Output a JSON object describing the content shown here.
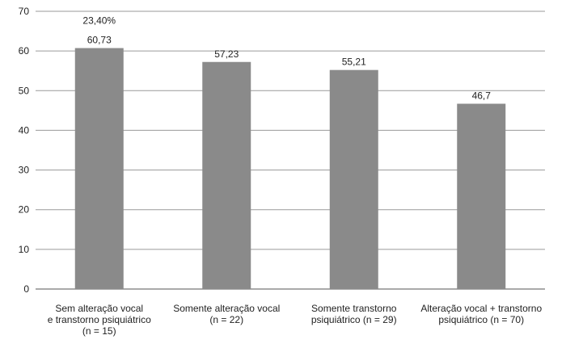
{
  "chart_data": {
    "type": "bar",
    "categories": [
      [
        "Sem alteração vocal",
        "e transtorno psiquiátrico",
        "(n = 15)"
      ],
      [
        "Somente alteração vocal",
        "(n = 22)"
      ],
      [
        "Somente transtorno",
        "psiquiátrico (n = 29)"
      ],
      [
        "Alteração vocal + transtorno",
        "psiquiátrico (n = 70)"
      ]
    ],
    "values": [
      60.73,
      57.23,
      55.21,
      46.7
    ],
    "value_labels": [
      "60,73",
      "57,23",
      "55,21",
      "46,7"
    ],
    "annotations": [
      {
        "category_index": 0,
        "text": "23,40%"
      }
    ],
    "ylim": [
      0,
      70
    ],
    "yticks": [
      0,
      10,
      20,
      30,
      40,
      50,
      60,
      70
    ],
    "grid": true,
    "colors": {
      "bar": "#8a8a8a",
      "grid": "#9a9a9a",
      "axis": "#555555",
      "text": "#222222"
    }
  }
}
